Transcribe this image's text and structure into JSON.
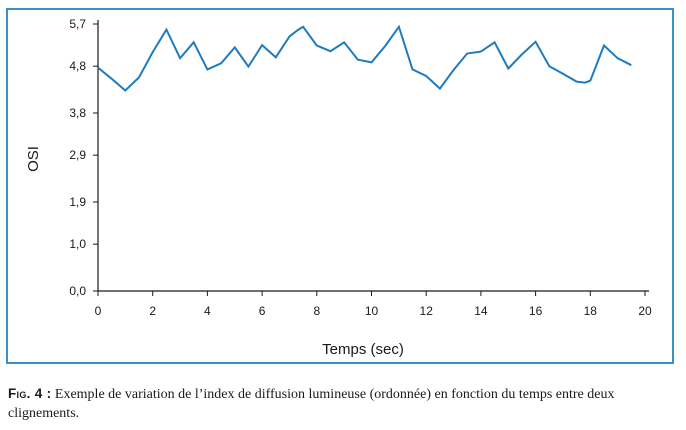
{
  "caption": {
    "label": "Fig. 4 :",
    "text": " Exemple de variation de l’index de diffusion lumineuse (ordonnée) en fonction du temps entre deux clignements."
  },
  "colors": {
    "frame": "#3a8fc7",
    "line": "#1f7bbf",
    "axis": "#1a1a1a"
  },
  "chart_data": {
    "type": "line",
    "xlabel": "Temps (sec)",
    "ylabel": "OSI",
    "xlim": [
      0,
      20
    ],
    "ylim": [
      0,
      5.7
    ],
    "x_ticks": [
      0,
      2,
      4,
      6,
      8,
      10,
      12,
      14,
      16,
      18,
      20
    ],
    "y_ticks": [
      0,
      1.0,
      1.9,
      2.9,
      3.8,
      4.8,
      5.7
    ],
    "y_tick_labels": [
      "0,0",
      "1,0",
      "1,9",
      "2,9",
      "3,8",
      "4,8",
      "5,7"
    ],
    "grid": false,
    "series": [
      {
        "x": [
          0,
          0.5,
          1,
          1.5,
          2,
          2.5,
          3,
          3.5,
          4,
          4.5,
          5,
          5.5,
          6,
          6.5,
          7,
          7.3,
          7.5,
          8,
          8.5,
          9,
          9.5,
          10,
          10.5,
          11,
          11.5,
          12,
          12.5,
          13,
          13.5,
          14,
          14.5,
          15,
          15.5,
          16,
          16.5,
          17,
          17.5,
          17.8,
          18,
          18.5,
          19,
          19.5
        ],
        "y": [
          4.77,
          4.53,
          4.28,
          4.56,
          5.1,
          5.58,
          4.97,
          5.31,
          4.73,
          4.86,
          5.2,
          4.79,
          5.25,
          4.99,
          5.43,
          5.57,
          5.64,
          5.24,
          5.12,
          5.31,
          4.94,
          4.88,
          5.23,
          5.64,
          4.73,
          4.59,
          4.32,
          4.72,
          5.07,
          5.11,
          5.31,
          4.75,
          5.05,
          5.32,
          4.8,
          4.64,
          4.47,
          4.45,
          4.49,
          5.24,
          4.97,
          4.82
        ]
      }
    ]
  }
}
